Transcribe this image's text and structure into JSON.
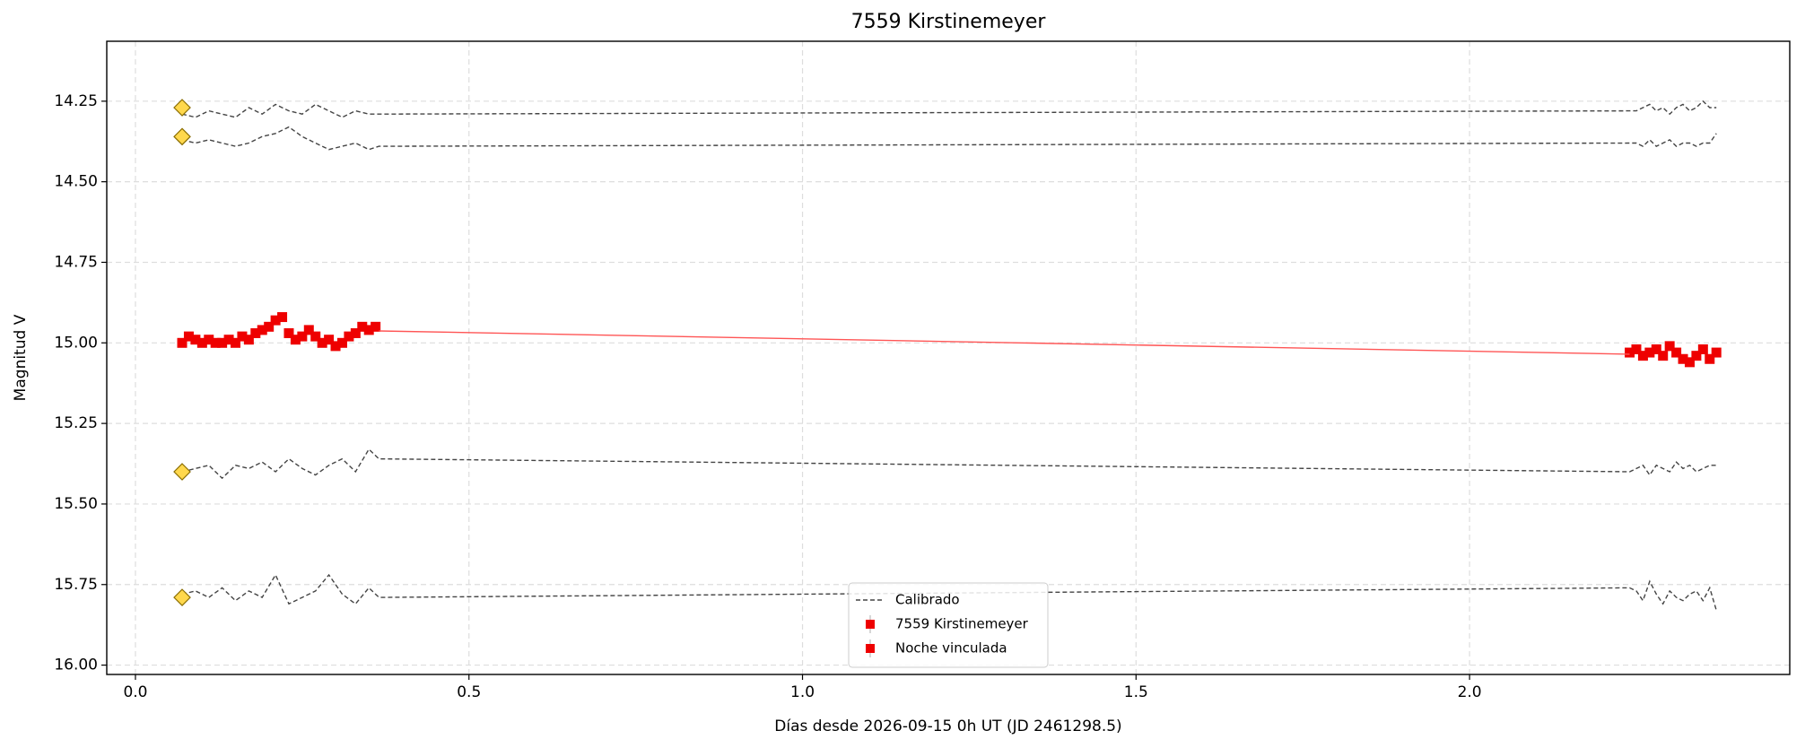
{
  "chart_data": {
    "type": "line",
    "title": "7559 Kirstinemeyer",
    "xlabel": "Días desde 2026-09-15 0h UT (JD 2461298.5)",
    "ylabel": "Magnitud V",
    "xlim": [
      -0.043,
      2.48
    ],
    "ylim": [
      14.064,
      16.029
    ],
    "y_inverted": true,
    "grid": true,
    "legend": "lower center",
    "xticks": [
      {
        "value": 0,
        "label": "0.0"
      },
      0.5,
      {
        "value": 1,
        "label": "1.0"
      },
      1.5,
      {
        "value": 2,
        "label": "2.0"
      }
    ],
    "yticks": [
      14.25,
      {
        "value": 14.5,
        "label": "14.50"
      },
      14.75,
      {
        "value": 15,
        "label": "15.00"
      },
      15.25,
      {
        "value": 15.5,
        "label": "15.50"
      },
      15.75,
      {
        "value": 16,
        "label": "16.00"
      }
    ],
    "x": [
      0.07,
      0.09,
      0.11,
      0.13,
      0.15,
      0.17,
      0.19,
      0.21,
      0.23,
      0.25,
      0.27,
      0.29,
      0.31,
      0.33,
      0.35,
      0.365,
      2.24,
      2.25,
      2.26,
      2.27,
      2.28,
      2.29,
      2.3,
      2.31,
      2.32,
      2.33,
      2.34,
      2.35,
      2.36,
      2.37
    ],
    "series": [
      {
        "name": "Calibrado",
        "color": "#444444",
        "style": "dashed",
        "ref": 14.27,
        "ref_color": "#ffd84d",
        "values": [
          14.29,
          14.3,
          14.28,
          14.29,
          14.3,
          14.27,
          14.29,
          14.26,
          14.28,
          14.29,
          14.26,
          14.28,
          14.3,
          14.28,
          14.29,
          14.29,
          14.28,
          14.28,
          14.27,
          14.26,
          14.28,
          14.27,
          14.29,
          14.27,
          14.26,
          14.28,
          14.27,
          14.25,
          14.27,
          14.27
        ]
      },
      {
        "color": "#444444",
        "style": "dashed",
        "ref": 14.36,
        "ref_color": "#ffd84d",
        "values": [
          14.37,
          14.38,
          14.37,
          14.38,
          14.39,
          14.38,
          14.36,
          14.35,
          14.33,
          14.36,
          14.38,
          14.4,
          14.39,
          14.38,
          14.4,
          14.39,
          14.38,
          14.38,
          14.39,
          14.37,
          14.39,
          14.38,
          14.37,
          14.39,
          14.38,
          14.38,
          14.39,
          14.38,
          14.38,
          14.35
        ]
      },
      {
        "color": "#444444",
        "style": "dashed",
        "ref": 15.4,
        "ref_color": "#ffd84d",
        "values": [
          15.4,
          15.39,
          15.38,
          15.42,
          15.38,
          15.39,
          15.37,
          15.4,
          15.36,
          15.39,
          15.41,
          15.38,
          15.36,
          15.4,
          15.33,
          15.36,
          15.4,
          15.39,
          15.38,
          15.41,
          15.38,
          15.39,
          15.4,
          15.37,
          15.39,
          15.38,
          15.4,
          15.39,
          15.38,
          15.38
        ]
      },
      {
        "color": "#444444",
        "style": "dashed",
        "ref": 15.79,
        "ref_color": "#ffd84d",
        "values": [
          15.78,
          15.77,
          15.79,
          15.76,
          15.8,
          15.77,
          15.79,
          15.72,
          15.81,
          15.79,
          15.77,
          15.72,
          15.78,
          15.81,
          15.76,
          15.79,
          15.76,
          15.77,
          15.8,
          15.74,
          15.78,
          15.81,
          15.77,
          15.79,
          15.8,
          15.78,
          15.77,
          15.8,
          15.76,
          15.83
        ]
      },
      {
        "name": "7559 Kirstinemeyer",
        "color": "#ee0000",
        "style": "markers",
        "x": [
          0.07,
          0.08,
          0.09,
          0.1,
          0.11,
          0.12,
          0.13,
          0.14,
          0.15,
          0.16,
          0.17,
          0.18,
          0.19,
          0.2,
          0.21,
          0.22,
          0.23,
          0.24,
          0.25,
          0.26,
          0.27,
          0.28,
          0.29,
          0.3,
          0.31,
          0.32,
          0.33,
          0.34,
          0.35,
          0.36,
          2.24,
          2.25,
          2.26,
          2.27,
          2.28,
          2.29,
          2.3,
          2.31,
          2.32,
          2.33,
          2.34,
          2.35,
          2.36,
          2.37
        ],
        "values": [
          15.0,
          14.98,
          14.99,
          15.0,
          14.99,
          15.0,
          15.0,
          14.99,
          15.0,
          14.98,
          14.99,
          14.97,
          14.96,
          14.95,
          14.93,
          14.92,
          14.97,
          14.99,
          14.98,
          14.96,
          14.98,
          15.0,
          14.99,
          15.01,
          15.0,
          14.98,
          14.97,
          14.95,
          14.96,
          14.95,
          15.03,
          15.02,
          15.04,
          15.03,
          15.02,
          15.04,
          15.01,
          15.03,
          15.05,
          15.06,
          15.04,
          15.02,
          15.05,
          15.03
        ]
      },
      {
        "name": "Noche vinculada",
        "color": "#ff5555",
        "style": "solid",
        "x": [
          0.365,
          2.24
        ],
        "values": [
          14.963,
          15.035
        ]
      }
    ]
  }
}
